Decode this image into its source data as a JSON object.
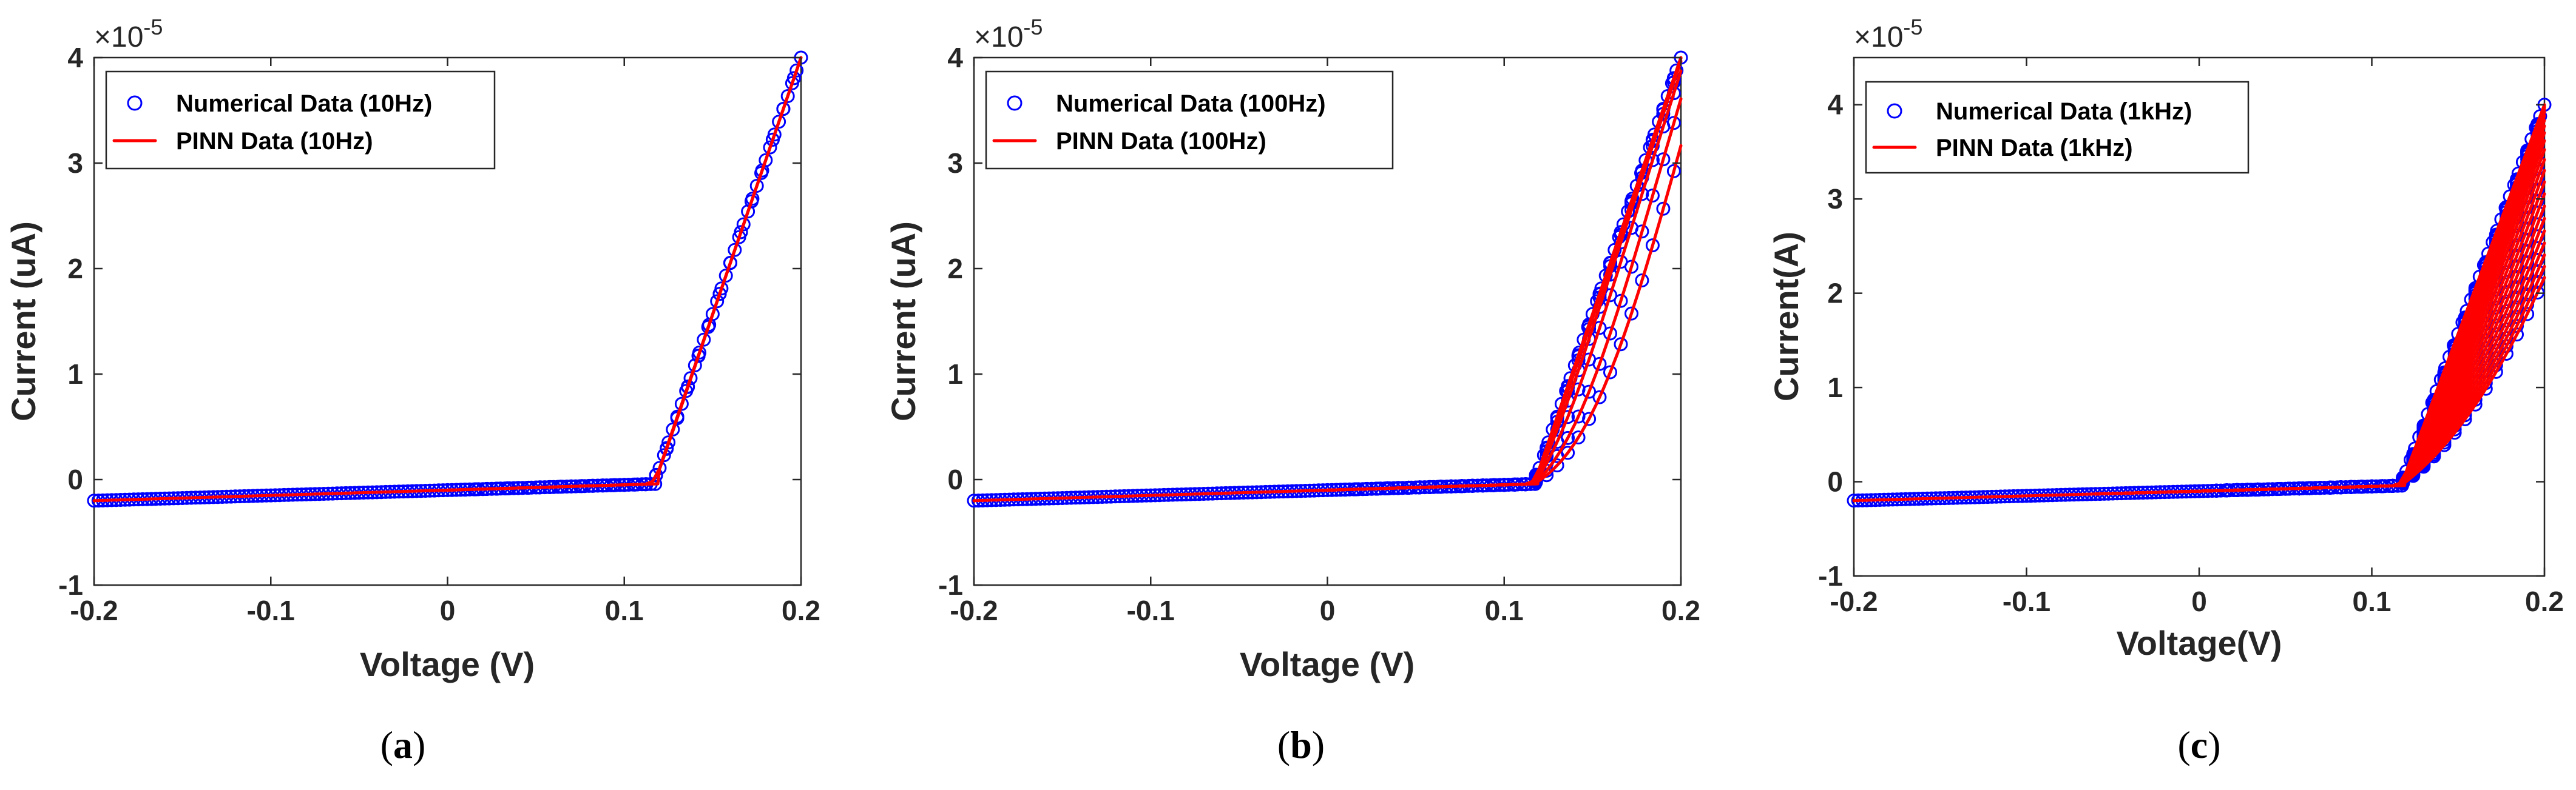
{
  "chart_data": [
    {
      "type": "line",
      "caption_letter": "a",
      "exponent_label": "×10",
      "exponent_power": "-5",
      "xlabel": "Voltage (V)",
      "ylabel": "Current (uA)",
      "xlim": [
        -0.2,
        0.2
      ],
      "ylim": [
        -1,
        4
      ],
      "xticks": [
        -0.2,
        -0.1,
        0,
        0.1,
        0.2
      ],
      "yticks": [
        -1,
        0,
        1,
        2,
        3,
        4
      ],
      "xtick_labels": [
        "-0.2",
        "-0.1",
        "0",
        "0.1",
        "0.2"
      ],
      "ytick_labels": [
        "-1",
        "0",
        "1",
        "2",
        "3",
        "4"
      ],
      "legend_position": "top-left",
      "frequency_hz": 10,
      "series": [
        {
          "name": "Numerical Data (10Hz)",
          "style": "marker",
          "color": "#0000ff"
        },
        {
          "name": "PINN Data (10Hz)",
          "style": "line",
          "color": "#ff0000"
        }
      ],
      "ranges": {
        "Vmax": 0.2,
        "Imin": -0.2,
        "Imax": 4,
        "knee": 0.12
      }
    },
    {
      "type": "line",
      "caption_letter": "b",
      "exponent_label": "×10",
      "exponent_power": "-5",
      "xlabel": "Voltage (V)",
      "ylabel": "Current (uA)",
      "xlim": [
        -0.2,
        0.2
      ],
      "ylim": [
        -1,
        4
      ],
      "xticks": [
        -0.2,
        -0.1,
        0,
        0.1,
        0.2
      ],
      "yticks": [
        -1,
        0,
        1,
        2,
        3,
        4
      ],
      "xtick_labels": [
        "-0.2",
        "-0.1",
        "0",
        "0.1",
        "0.2"
      ],
      "ytick_labels": [
        "-1",
        "0",
        "1",
        "2",
        "3",
        "4"
      ],
      "legend_position": "top-left",
      "frequency_hz": 100,
      "series": [
        {
          "name": "Numerical Data (100Hz)",
          "style": "marker",
          "color": "#0000ff"
        },
        {
          "name": "PINN Data (100Hz)",
          "style": "line",
          "color": "#ff0000"
        }
      ],
      "ranges": {
        "Vmax": 0.2,
        "Imin": -0.2,
        "Imax": 4,
        "knee": 0.12
      }
    },
    {
      "type": "line",
      "caption_letter": "c",
      "exponent_label": "×10",
      "exponent_power": "-5",
      "xlabel": "Voltage(V)",
      "ylabel": "Current(A)",
      "xlim": [
        -0.2,
        0.2
      ],
      "ylim": [
        -1,
        4.5
      ],
      "xticks": [
        -0.2,
        -0.1,
        0,
        0.1,
        0.2
      ],
      "yticks": [
        -1,
        0,
        1,
        2,
        3,
        4
      ],
      "xtick_labels": [
        "-0.2",
        "-0.1",
        "0",
        "0.1",
        "0.2"
      ],
      "ytick_labels": [
        "-1",
        "0",
        "1",
        "2",
        "3",
        "4"
      ],
      "legend_position": "top-left",
      "frequency_hz": 1000,
      "series": [
        {
          "name": "Numerical Data (1kHz)",
          "style": "marker",
          "color": "#0000ff"
        },
        {
          "name": "PINN Data (1kHz)",
          "style": "line",
          "color": "#ff0000"
        }
      ],
      "ranges": {
        "Vmax": 0.2,
        "Imin": -0.2,
        "Imax": 4,
        "knee": 0.12
      }
    }
  ]
}
